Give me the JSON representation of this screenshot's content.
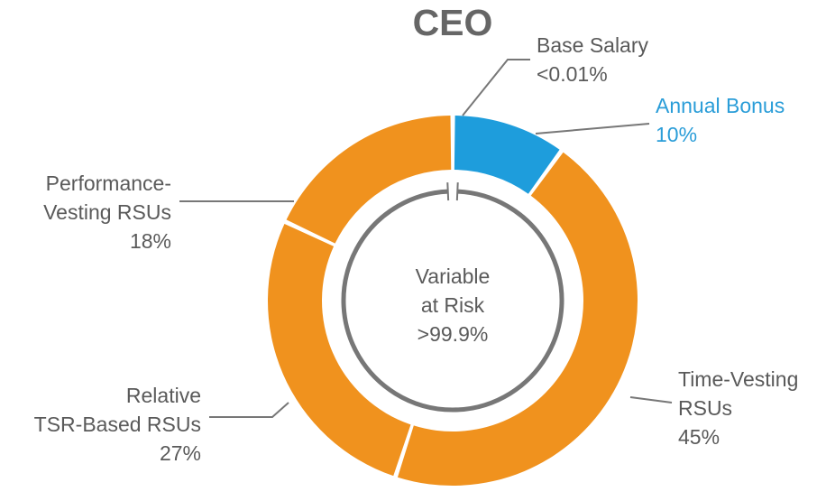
{
  "chart_data": {
    "type": "pie",
    "title": "CEO",
    "center_label": [
      "Variable",
      "at Risk",
      ">99.9%"
    ],
    "slices": [
      {
        "name": "Base Salary",
        "label_lines": [
          "Base Salary",
          "<0.01%"
        ],
        "value": 0.01,
        "color": "#f0921e"
      },
      {
        "name": "Annual Bonus",
        "label_lines": [
          "Annual Bonus",
          "10%"
        ],
        "value": 10,
        "color": "#1e9ddc"
      },
      {
        "name": "Time-Vesting RSUs",
        "label_lines": [
          "Time-Vesting",
          "RSUs",
          "45%"
        ],
        "value": 45,
        "color": "#f0921e"
      },
      {
        "name": "Relative TSR-Based RSUs",
        "label_lines": [
          "Relative",
          "TSR-Based RSUs",
          "27%"
        ],
        "value": 27,
        "color": "#f0921e"
      },
      {
        "name": "Performance-Vesting RSUs",
        "label_lines": [
          "Performance-",
          "Vesting RSUs",
          "18%"
        ],
        "value": 18,
        "color": "#f0921e"
      }
    ],
    "label_color": "#5a5a5a",
    "accent_label_color": "#2a9dd8",
    "leader_color": "#777777",
    "inner_ring_color": "#777777"
  }
}
